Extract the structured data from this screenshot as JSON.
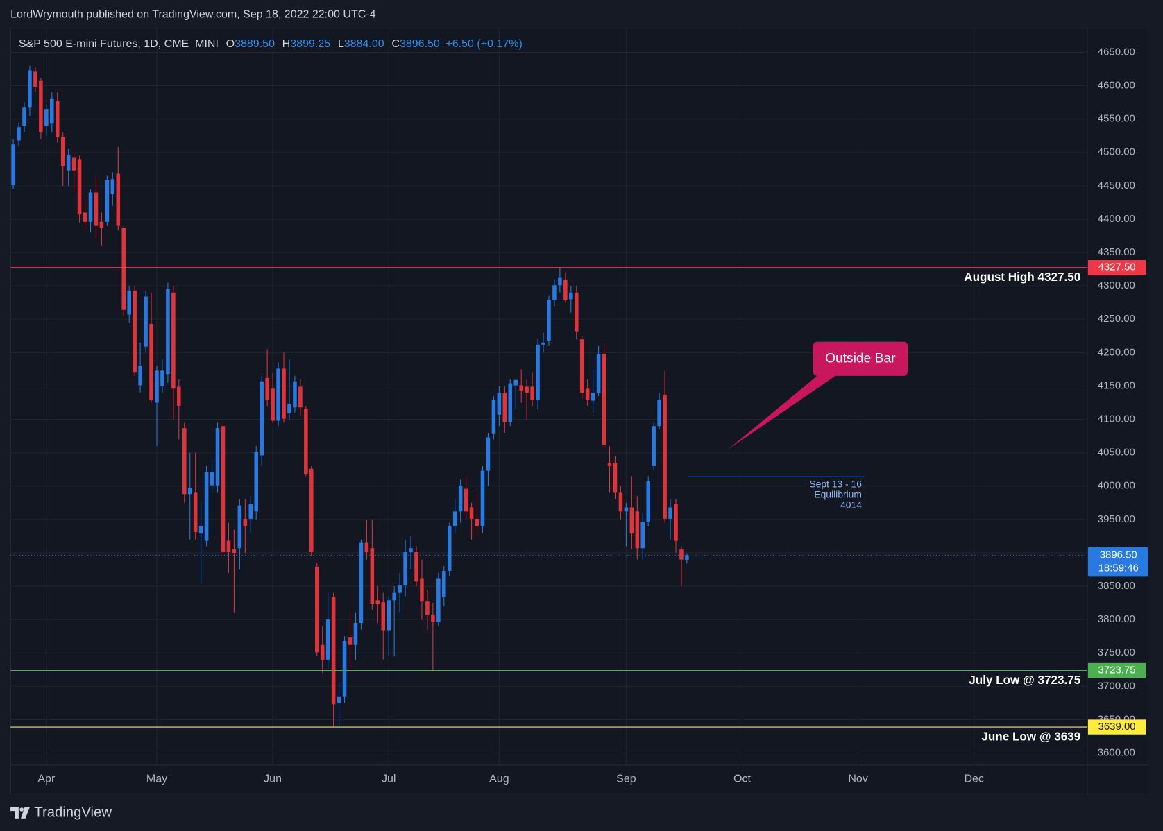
{
  "header": {
    "text": "LordWrymouth published on TradingView.com, Sep 18, 2022 22:00 UTC-4"
  },
  "legend": {
    "symbol": "S&P 500 E-mini Futures, 1D, CME_MINI",
    "ohlc": [
      {
        "key": "O",
        "value": "3889.50"
      },
      {
        "key": "H",
        "value": "3899.25"
      },
      {
        "key": "L",
        "value": "3884.00"
      },
      {
        "key": "C",
        "value": "3896.50"
      }
    ],
    "change": "+6.50 (+0.17%)"
  },
  "footer": {
    "brand": "TradingView"
  },
  "chart_data": {
    "type": "candlestick",
    "up_color": "#2879e0",
    "down_color": "#e0333a",
    "grid": true,
    "categories": [
      null,
      null,
      null,
      null,
      null,
      null,
      "Apr",
      null,
      null,
      null,
      null,
      null,
      null,
      null,
      null,
      null,
      null,
      null,
      null,
      null,
      null,
      null,
      null,
      null,
      null,
      null,
      "May",
      null,
      null,
      null,
      null,
      null,
      null,
      null,
      null,
      null,
      null,
      null,
      null,
      null,
      null,
      null,
      null,
      null,
      null,
      null,
      null,
      "Jun",
      null,
      null,
      null,
      null,
      null,
      null,
      null,
      null,
      null,
      null,
      null,
      null,
      null,
      null,
      null,
      null,
      null,
      null,
      null,
      null,
      "Jul",
      null,
      null,
      null,
      null,
      null,
      null,
      null,
      null,
      null,
      null,
      null,
      null,
      null,
      null,
      null,
      null,
      null,
      null,
      null,
      "Aug",
      null,
      null,
      null,
      null,
      null,
      null,
      null,
      null,
      null,
      null,
      null,
      null,
      null,
      null,
      null,
      null,
      null,
      null,
      null,
      null,
      null,
      null,
      "Sep",
      null,
      null,
      null,
      null,
      null,
      null,
      null,
      null,
      null,
      null,
      null,
      null,
      null,
      null,
      null,
      null,
      null,
      null,
      null,
      null,
      "Oct",
      null,
      null,
      null,
      null,
      null,
      null,
      null,
      null,
      null,
      null,
      null,
      null,
      null,
      null,
      null,
      null,
      null,
      null,
      null,
      null,
      "Nov",
      null,
      null,
      null,
      null,
      null,
      null,
      null,
      null,
      null,
      null,
      null,
      null,
      null,
      null,
      null,
      null,
      null,
      null,
      null,
      null,
      "Dec",
      null,
      null,
      null,
      null,
      null,
      null,
      null,
      null,
      null,
      null,
      null,
      null,
      null,
      null,
      null,
      null,
      null,
      null,
      null,
      null
    ],
    "open": [
      4451,
      4518,
      4540,
      4568,
      4621,
      4607,
      4540,
      4543,
      4577,
      4523,
      4473,
      4492,
      4490,
      4410,
      4396,
      4440,
      4396,
      4396,
      4438,
      4468,
      4387,
      4257,
      4293,
      4151,
      4209,
      4243,
      4125,
      4150,
      4168,
      4290,
      4149,
      4087,
      3988,
      3990,
      3929,
      3918,
      4001,
      4001,
      4090,
      3918,
      3905,
      3907,
      3951,
      3951,
      3962,
      4046,
      4162,
      4146,
      4098,
      4176,
      4109,
      4118,
      4149,
      4116,
      4026,
      3879,
      3762,
      3740,
      3834,
      3675,
      3684,
      3773,
      3762,
      3795,
      3915,
      3907,
      3829,
      3826,
      3784,
      3829,
      3840,
      3851,
      3901,
      3901,
      3862,
      3827,
      3807,
      3796,
      3834,
      3873,
      3940,
      3962,
      3996,
      3968,
      3951,
      3940,
      4023,
      4079,
      4107,
      4140,
      4096,
      4151,
      4151,
      4149,
      4149,
      4129,
      4212,
      4218,
      4279,
      4301,
      4309,
      4280,
      4290,
      4220,
      4146,
      4128,
      4140,
      4198,
      4035,
      4035,
      3990,
      3962,
      3968,
      3962,
      3907,
      3946,
      4030,
      4090,
      4137,
      3951,
      3973,
      3905,
      3889.5,
      null,
      null,
      null,
      null,
      null,
      null,
      null,
      null,
      null,
      null,
      null,
      null,
      null,
      null,
      null,
      null,
      null,
      null,
      null,
      null,
      null,
      null,
      null,
      null,
      null,
      null,
      null,
      null,
      null,
      null,
      null,
      null,
      null,
      null,
      null,
      null,
      null,
      null,
      null,
      null,
      null,
      null,
      null,
      null,
      null,
      null,
      null,
      null,
      null,
      null,
      null,
      null,
      null,
      null,
      null,
      null,
      null,
      null,
      null,
      null,
      null,
      null,
      null,
      null,
      null,
      null,
      null,
      null,
      null,
      null,
      null,
      null
    ],
    "high": [
      4520,
      4545,
      4575,
      4630,
      4628,
      4612,
      4572,
      4590,
      4590,
      4530,
      4505,
      4500,
      4495,
      4430,
      4445,
      4465,
      4410,
      4465,
      4470,
      4508,
      4390,
      4300,
      4300,
      4215,
      4293,
      4290,
      4180,
      4190,
      4305,
      4300,
      4160,
      4095,
      4050,
      4050,
      3975,
      4030,
      4040,
      4095,
      4095,
      3945,
      3935,
      3980,
      3980,
      3985,
      4060,
      4165,
      4205,
      4170,
      4185,
      4200,
      4190,
      4165,
      4160,
      4120,
      4030,
      3885,
      3790,
      3840,
      3840,
      3705,
      3775,
      3810,
      3810,
      3920,
      3950,
      3950,
      3850,
      3840,
      3835,
      3850,
      3870,
      3920,
      3925,
      3910,
      3890,
      3845,
      3825,
      3870,
      3880,
      3945,
      3980,
      4010,
      4015,
      3975,
      3990,
      4030,
      4080,
      4135,
      4150,
      4150,
      4160,
      4160,
      4175,
      4160,
      4170,
      4220,
      4230,
      4285,
      4310,
      4328,
      4320,
      4300,
      4300,
      4225,
      4160,
      4175,
      4210,
      4215,
      4060,
      4045,
      4000,
      3975,
      4015,
      3985,
      3960,
      4015,
      4095,
      4140,
      4173,
      3980,
      3980,
      3910,
      3899.25,
      null,
      null,
      null,
      null,
      null,
      null,
      null,
      null,
      null,
      null,
      null,
      null,
      null,
      null,
      null,
      null,
      null,
      null,
      null,
      null,
      null,
      null,
      null,
      null,
      null,
      null,
      null,
      null,
      null,
      null,
      null,
      null,
      null,
      null,
      null,
      null,
      null,
      null,
      null,
      null,
      null,
      null,
      null,
      null,
      null,
      null,
      null,
      null,
      null,
      null,
      null,
      null,
      null,
      null,
      null,
      null,
      null,
      null,
      null,
      null,
      null,
      null,
      null,
      null,
      null,
      null,
      null,
      null,
      null,
      null,
      null,
      null
    ],
    "low": [
      4445,
      4510,
      4530,
      4555,
      4590,
      4520,
      4525,
      4530,
      4515,
      4450,
      4450,
      4440,
      4395,
      4385,
      4380,
      4370,
      4360,
      4390,
      4420,
      4383,
      4255,
      4245,
      4165,
      4140,
      4200,
      4125,
      4060,
      4140,
      4155,
      4100,
      4070,
      3975,
      3920,
      3920,
      3855,
      3910,
      3990,
      3990,
      3895,
      3870,
      3810,
      3875,
      3900,
      3930,
      3950,
      4030,
      4120,
      4095,
      4090,
      4095,
      4100,
      4110,
      4105,
      4015,
      3895,
      3745,
      3720,
      3725,
      3640,
      3640,
      3675,
      3725,
      3740,
      3785,
      3890,
      3815,
      3795,
      3740,
      3745,
      3745,
      3810,
      3835,
      3875,
      3850,
      3800,
      3785,
      3723.75,
      3790,
      3820,
      3865,
      3930,
      3945,
      3950,
      3920,
      3925,
      3930,
      4000,
      4070,
      4090,
      4080,
      4090,
      4115,
      4125,
      4100,
      4120,
      4115,
      4200,
      4210,
      4270,
      4290,
      4275,
      4260,
      4220,
      4130,
      4120,
      4110,
      4135,
      4055,
      3990,
      3980,
      3950,
      3910,
      3905,
      3890,
      3890,
      3940,
      4025,
      4085,
      3945,
      3920,
      3900,
      3850,
      3884,
      null,
      null,
      null,
      null,
      null,
      null,
      null,
      null,
      null,
      null,
      null,
      null,
      null,
      null,
      null,
      null,
      null,
      null,
      null,
      null,
      null,
      null,
      null,
      null,
      null,
      null,
      null,
      null,
      null,
      null,
      null,
      null,
      null,
      null,
      null,
      null,
      null,
      null,
      null,
      null,
      null,
      null,
      null,
      null,
      null,
      null,
      null,
      null,
      null,
      null,
      null,
      null,
      null,
      null,
      null,
      null,
      null,
      null,
      null,
      null,
      null,
      null,
      null,
      null,
      null,
      null,
      null,
      null,
      null,
      null,
      null,
      null
    ],
    "close": [
      4512,
      4538,
      4568,
      4623,
      4598,
      4531,
      4565,
      4580,
      4523,
      4479,
      4496,
      4473,
      4407,
      4396,
      4440,
      4390,
      4387,
      4459,
      4460,
      4390,
      4264,
      4293,
      4170,
      4180,
      4284,
      4129,
      4173,
      4173,
      4295,
      4146,
      4120,
      3988,
      3997,
      3931,
      3940,
      4021,
      4021,
      4087,
      3901,
      3901,
      3900,
      3971,
      3940,
      3973,
      4051,
      4157,
      4129,
      4098,
      4176,
      4101,
      4123,
      4157,
      4118,
      4018,
      3901,
      3751,
      3740,
      3800,
      3673,
      3684,
      3768,
      3762,
      3795,
      3915,
      3901,
      3823,
      3823,
      3784,
      3829,
      3840,
      3851,
      3901,
      3907,
      3857,
      3827,
      3807,
      3796,
      3862,
      3873,
      3940,
      3962,
      4001,
      3962,
      3951,
      3940,
      4023,
      4073,
      4129,
      4140,
      4096,
      4154,
      4159,
      4143,
      4140,
      4129,
      4212,
      4215,
      4279,
      4301,
      4312,
      4279,
      4290,
      4232,
      4140,
      4129,
      4140,
      4198,
      4062,
      4030,
      3990,
      3962,
      3968,
      3929,
      3907,
      3946,
      4007,
      4090,
      4129,
      3951,
      3968,
      3918,
      3890,
      3896.5,
      null,
      null,
      null,
      null,
      null,
      null,
      null,
      null,
      null,
      null,
      null,
      null,
      null,
      null,
      null,
      null,
      null,
      null,
      null,
      null,
      null,
      null,
      null,
      null,
      null,
      null,
      null,
      null,
      null,
      null,
      null,
      null,
      null,
      null,
      null,
      null,
      null,
      null,
      null,
      null,
      null,
      null,
      null,
      null,
      null,
      null,
      null,
      null,
      null,
      null,
      null,
      null,
      null,
      null,
      null,
      null,
      null,
      null,
      null,
      null,
      null,
      null,
      null,
      null,
      null,
      null,
      null,
      null,
      null,
      null,
      null,
      null
    ],
    "ylim": [
      3582,
      4684
    ],
    "yticks": [
      {
        "value": 3600,
        "label": "3600.00"
      },
      {
        "value": 3650,
        "label": "3650.00"
      },
      {
        "value": 3700,
        "label": "3700.00"
      },
      {
        "value": 3750,
        "label": "3750.00"
      },
      {
        "value": 3800,
        "label": "3800.00"
      },
      {
        "value": 3850,
        "label": "3850.00"
      },
      {
        "value": 3900,
        "label": "3900.00"
      },
      {
        "value": 3950,
        "label": "3950.00"
      },
      {
        "value": 4000,
        "label": "4000.00"
      },
      {
        "value": 4050,
        "label": "4050.00"
      },
      {
        "value": 4100,
        "label": "4100.00"
      },
      {
        "value": 4150,
        "label": "4150.00"
      },
      {
        "value": 4200,
        "label": "4200.00"
      },
      {
        "value": 4250,
        "label": "4250.00"
      },
      {
        "value": 4300,
        "label": "4300.00"
      },
      {
        "value": 4350,
        "label": "4350.00"
      },
      {
        "value": 4400,
        "label": "4400.00"
      },
      {
        "value": 4450,
        "label": "4450.00"
      },
      {
        "value": 4500,
        "label": "4500.00"
      },
      {
        "value": 4550,
        "label": "4550.00"
      },
      {
        "value": 4600,
        "label": "4600.00"
      },
      {
        "value": 4650,
        "label": "4650.00"
      }
    ],
    "levels": [
      {
        "name": "August High 4327.50",
        "value": 4327.5,
        "label": "4327.50",
        "color": "#f23645",
        "text_color": "#ffffff"
      },
      {
        "name": "July Low @ 3723.75",
        "value": 3723.75,
        "label": "3723.75",
        "color": "#4caf50",
        "text_color": "#ffffff"
      },
      {
        "name": "June Low @ 3639",
        "value": 3639,
        "label": "3639.00",
        "color": "#ffeb3b",
        "text_color": "#131722"
      }
    ],
    "last_price": {
      "value": 3896.5,
      "label": "3896.50",
      "countdown": "18:59:46",
      "color": "#2879e0"
    },
    "equilibrium": {
      "value": 4014,
      "lines": [
        "Sept 13 - 16",
        "Equilibrium",
        "4014"
      ],
      "color": "#2879e0"
    },
    "annotations": [
      {
        "text": "Outside Bar"
      }
    ]
  }
}
